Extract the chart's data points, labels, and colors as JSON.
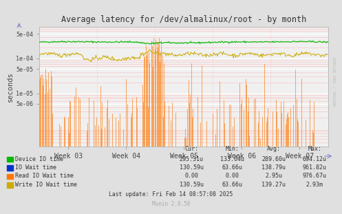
{
  "title": "Average latency for /dev/almalinux/root - by month",
  "ylabel": "seconds",
  "xlabel_ticks": [
    "Week 03",
    "Week 04",
    "Week 05",
    "Week 06",
    "Week 07"
  ],
  "bg_color": "#e0e0e0",
  "plot_bg_color": "#f0f0f0",
  "green_color": "#00bb00",
  "yellow_color": "#ccaa00",
  "orange_color": "#ff7700",
  "blue_color": "#0033cc",
  "legend_items": [
    {
      "label": "Device IO time",
      "color": "#00bb00"
    },
    {
      "label": "IO Wait time",
      "color": "#0033cc"
    },
    {
      "label": "Read IO Wait time",
      "color": "#ff7700"
    },
    {
      "label": "Write IO Wait time",
      "color": "#ccaa00"
    }
  ],
  "legend_stats": {
    "headers": [
      "Cur:",
      "Min:",
      "Avg:",
      "Max:"
    ],
    "rows": [
      [
        "295.31u",
        "133.04u",
        "289.60u",
        "694.12u"
      ],
      [
        "130.59u",
        "63.66u",
        "138.79u",
        "961.82u"
      ],
      [
        "0.00",
        "0.00",
        "2.95u",
        "976.67u"
      ],
      [
        "130.59u",
        "63.66u",
        "139.27u",
        "2.93m"
      ]
    ]
  },
  "last_update": "Last update: Fri Feb 14 08:57:08 2025",
  "munin_version": "Munin 2.0.56",
  "rrdtool_label": "RRDTOOL / TOBI OETIKER",
  "n_points": 400,
  "green_base": 0.00029,
  "yellow_base": 0.00013
}
